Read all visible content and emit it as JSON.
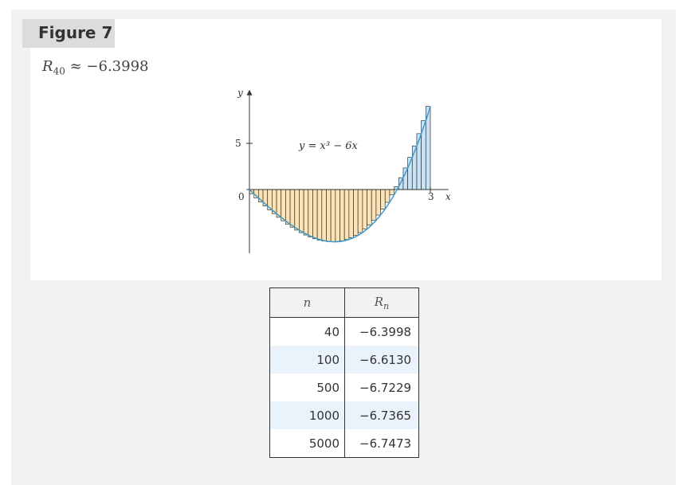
{
  "figure": {
    "label": "Figure 7",
    "approx_symbol": "R",
    "approx_subscript": "40",
    "approx_operator": "≈",
    "approx_value": "−6.3998"
  },
  "chart_data": {
    "type": "area",
    "function_label": "y = x³ − 6x",
    "xlabel": "x",
    "ylabel": "y",
    "x_ticks": [
      "0",
      "3"
    ],
    "y_ticks": [
      "5"
    ],
    "xlim": [
      0,
      3
    ],
    "n_rectangles": 40,
    "method": "right endpoints",
    "colors": {
      "negative_fill": "#fde2b3",
      "positive_fill": "#c7e3f5",
      "curve": "#3a9bd5",
      "outline": "#333333"
    }
  },
  "table": {
    "headers": [
      "n",
      "Rn"
    ],
    "rows": [
      {
        "n": "40",
        "r": "−6.3998"
      },
      {
        "n": "100",
        "r": "−6.6130"
      },
      {
        "n": "500",
        "r": "−6.7229"
      },
      {
        "n": "1000",
        "r": "−6.7365"
      },
      {
        "n": "5000",
        "r": "−6.7473"
      }
    ]
  }
}
